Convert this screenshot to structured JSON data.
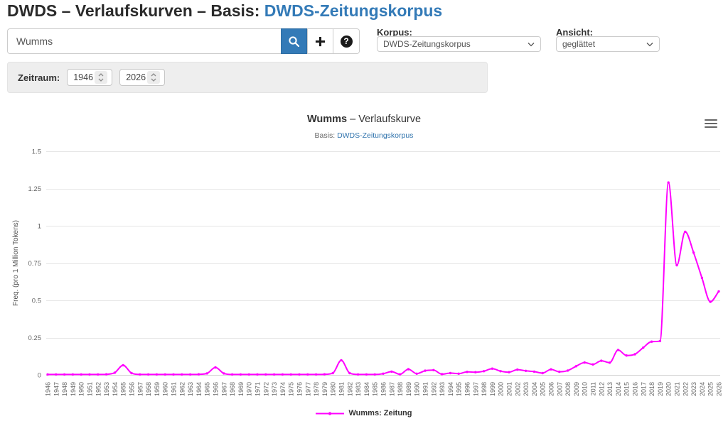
{
  "page": {
    "title_prefix": "DWDS – Verlaufskurven – Basis: ",
    "title_link": "DWDS-Zeitungskorpus"
  },
  "search": {
    "value": "Wumms"
  },
  "korpus": {
    "label": "Korpus:",
    "value": "DWDS-Zeitungskorpus"
  },
  "ansicht": {
    "label": "Ansicht:",
    "value": "geglättet"
  },
  "zeitraum": {
    "label": "Zeitraum:",
    "from": "1946",
    "to": "2026"
  },
  "icons": {
    "search": "magnifier-icon",
    "add": "plus-icon",
    "help": "question-circle-icon",
    "menu": "hamburger-menu-icon",
    "help_glyph": "?"
  },
  "colors": {
    "accent_blue": "#337ab7",
    "line_magenta": "#ff00ff",
    "grid": "#e6e6e6",
    "axis_line": "#d0d0d0",
    "label_gray": "#666666",
    "text_dark": "#333333",
    "panel_bg": "#eeeeee"
  },
  "chart_data": {
    "type": "line",
    "title": "Wumms – Verlaufskurve",
    "title_bold": "Wumms",
    "title_rest": " – Verlaufskurve",
    "subtitle_prefix": "Basis: ",
    "subtitle_link": "DWDS-Zeitungskorpus",
    "ylabel": "Freq. (pro 1 Million Tokens)",
    "ylim": [
      0,
      1.5
    ],
    "yticks": [
      0,
      0.25,
      0.5,
      0.75,
      1,
      1.25,
      1.5
    ],
    "x_range": [
      1946,
      2026
    ],
    "grid": true,
    "legend_position": "bottom",
    "smoothing": "geglättet",
    "series": [
      {
        "name": "Wumms: Zeitung",
        "color": "#ff00ff",
        "x": [
          1946,
          1947,
          1948,
          1949,
          1950,
          1951,
          1952,
          1953,
          1954,
          1955,
          1956,
          1957,
          1958,
          1959,
          1960,
          1961,
          1962,
          1963,
          1964,
          1965,
          1966,
          1967,
          1968,
          1969,
          1970,
          1971,
          1972,
          1973,
          1974,
          1975,
          1976,
          1977,
          1978,
          1979,
          1980,
          1981,
          1982,
          1983,
          1984,
          1985,
          1986,
          1987,
          1988,
          1989,
          1990,
          1991,
          1992,
          1993,
          1994,
          1995,
          1996,
          1997,
          1998,
          1999,
          2000,
          2001,
          2002,
          2003,
          2004,
          2005,
          2006,
          2007,
          2008,
          2009,
          2010,
          2011,
          2012,
          2013,
          2014,
          2015,
          2016,
          2017,
          2018,
          2019,
          2020,
          2021,
          2022,
          2023,
          2024,
          2025,
          2026
        ],
        "values": [
          0.003,
          0.003,
          0.003,
          0.003,
          0.003,
          0.003,
          0.003,
          0.004,
          0.015,
          0.065,
          0.012,
          0.003,
          0.003,
          0.003,
          0.003,
          0.003,
          0.003,
          0.003,
          0.004,
          0.01,
          0.05,
          0.01,
          0.003,
          0.003,
          0.003,
          0.003,
          0.003,
          0.003,
          0.003,
          0.003,
          0.003,
          0.003,
          0.003,
          0.004,
          0.012,
          0.098,
          0.012,
          0.003,
          0.003,
          0.003,
          0.008,
          0.022,
          0.004,
          0.038,
          0.008,
          0.028,
          0.032,
          0.005,
          0.012,
          0.008,
          0.02,
          0.018,
          0.025,
          0.042,
          0.025,
          0.018,
          0.035,
          0.027,
          0.022,
          0.012,
          0.037,
          0.021,
          0.029,
          0.058,
          0.083,
          0.07,
          0.095,
          0.082,
          0.167,
          0.13,
          0.138,
          0.183,
          0.223,
          0.227,
          1.29,
          0.735,
          0.96,
          0.82,
          0.65,
          0.49,
          0.56
        ]
      }
    ]
  }
}
